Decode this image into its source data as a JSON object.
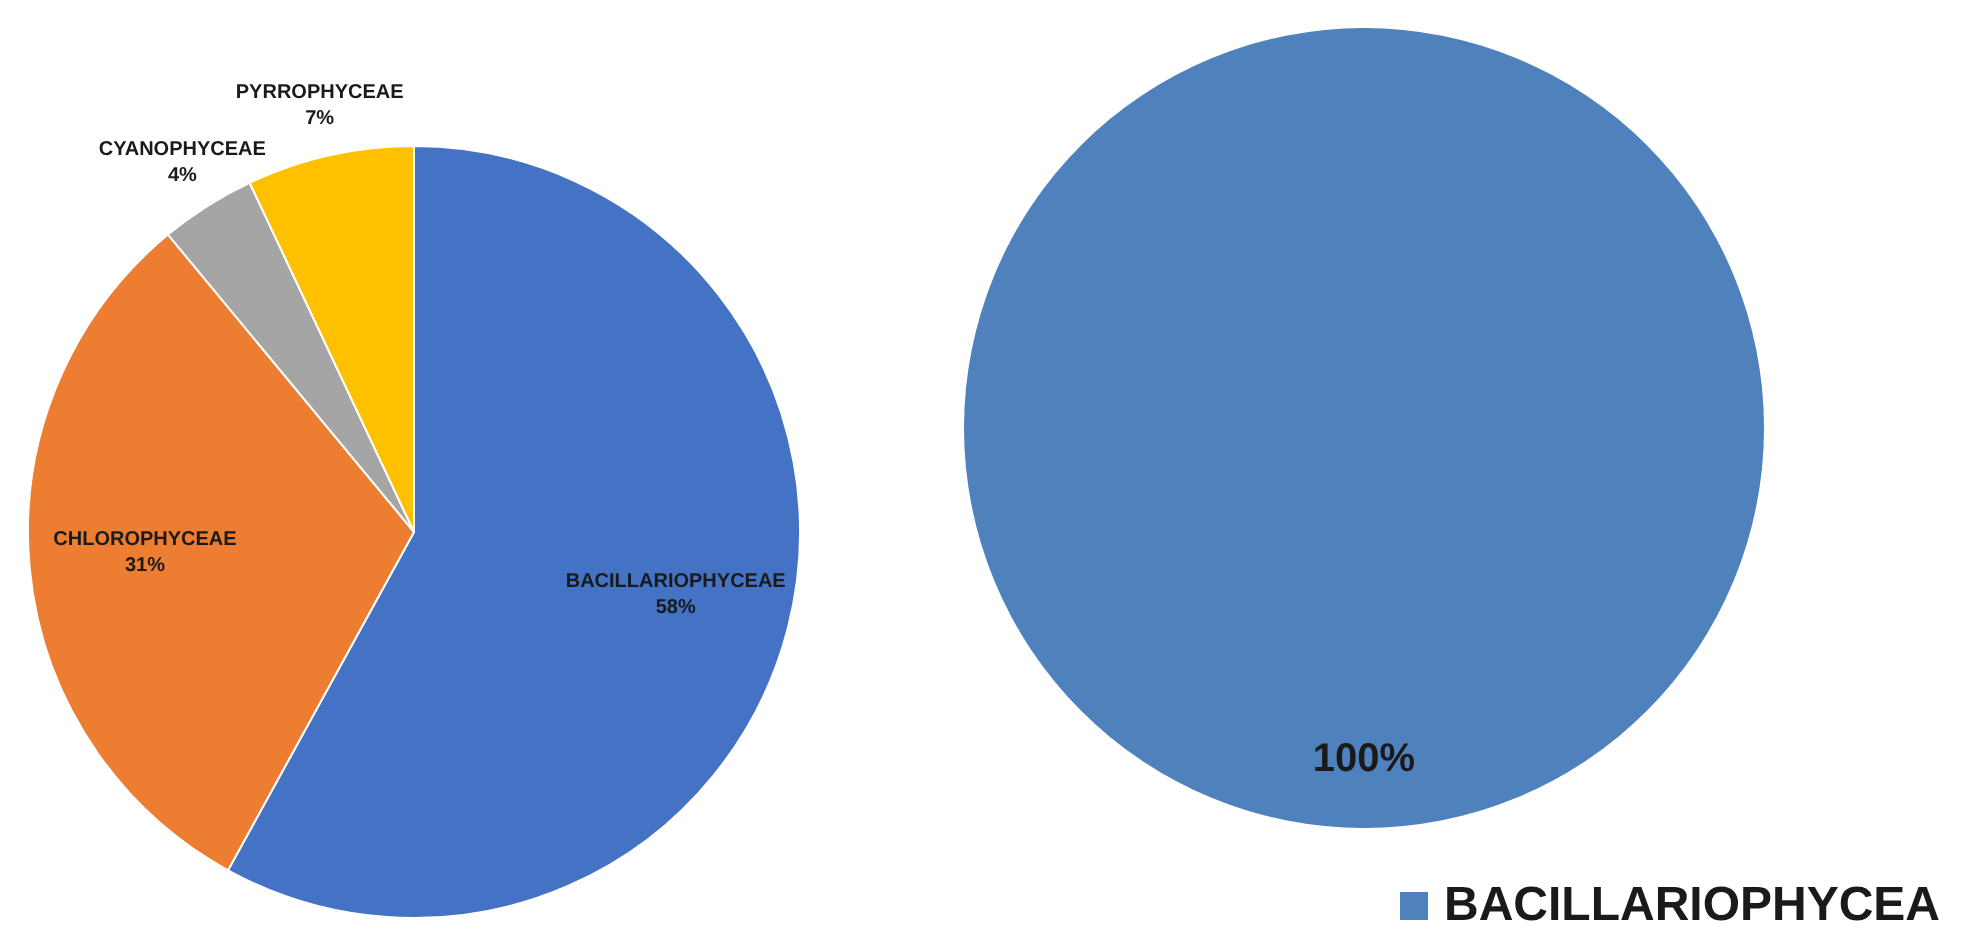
{
  "chart_data": [
    {
      "type": "pie",
      "categories": [
        "BACILLARIOPHYCEAE",
        "CHLOROPHYCEAE",
        "CYANOPHYCEAE",
        "PYRROPHYCEAE"
      ],
      "values": [
        58,
        31,
        4,
        7
      ],
      "colors": [
        "#4472c4",
        "#ed7d31",
        "#a5a5a5",
        "#ffc000"
      ],
      "value_labels": [
        "58%",
        "31%",
        "4%",
        "7%"
      ],
      "legend": false
    },
    {
      "type": "pie",
      "categories": [
        "BACILLARIOPHYCEA"
      ],
      "values": [
        100
      ],
      "colors": [
        "#4f81bd"
      ],
      "value_labels": [
        "100%"
      ],
      "legend": "bottom right"
    }
  ]
}
